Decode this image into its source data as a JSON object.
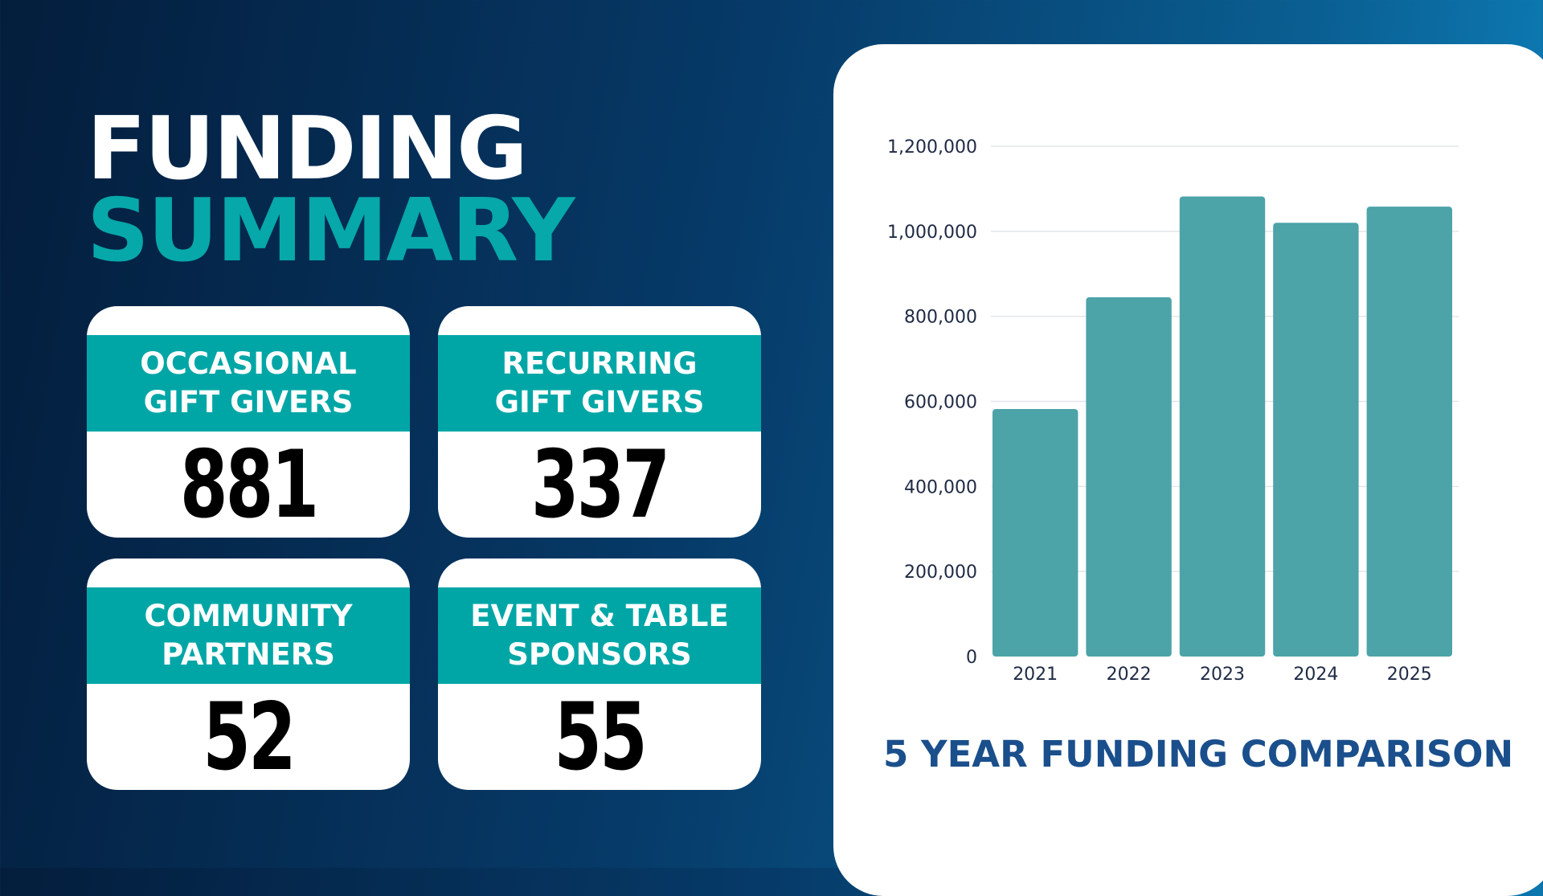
{
  "header": {
    "line1": "FUNDING",
    "line2": "SUMMARY"
  },
  "colors": {
    "accent": "#00a6a6",
    "bar": "#4ca3a8",
    "title_dark": "#1a4f8c",
    "background_dark": "#041d3c"
  },
  "stats": [
    {
      "label_line1": "OCCASIONAL",
      "label_line2": "GIFT GIVERS",
      "value": "881"
    },
    {
      "label_line1": "RECURRING",
      "label_line2": "GIFT GIVERS",
      "value": "337"
    },
    {
      "label_line1": "COMMUNITY",
      "label_line2": "PARTNERS",
      "value": "52"
    },
    {
      "label_line1": "EVENT & TABLE",
      "label_line2": "SPONSORS",
      "value": "55"
    }
  ],
  "chart_data": {
    "type": "bar",
    "title": "5 YEAR FUNDING COMPARISON",
    "categories": [
      "2021",
      "2022",
      "2023",
      "2024",
      "2025"
    ],
    "values": [
      582000,
      845000,
      1082000,
      1020000,
      1058000
    ],
    "ylim": [
      0,
      1200000
    ],
    "yticks": [
      "0",
      "200,000",
      "400,000",
      "600,000",
      "800,000",
      "1,000,000",
      "1,200,000"
    ],
    "grid": true,
    "xlabel": "",
    "ylabel": ""
  }
}
